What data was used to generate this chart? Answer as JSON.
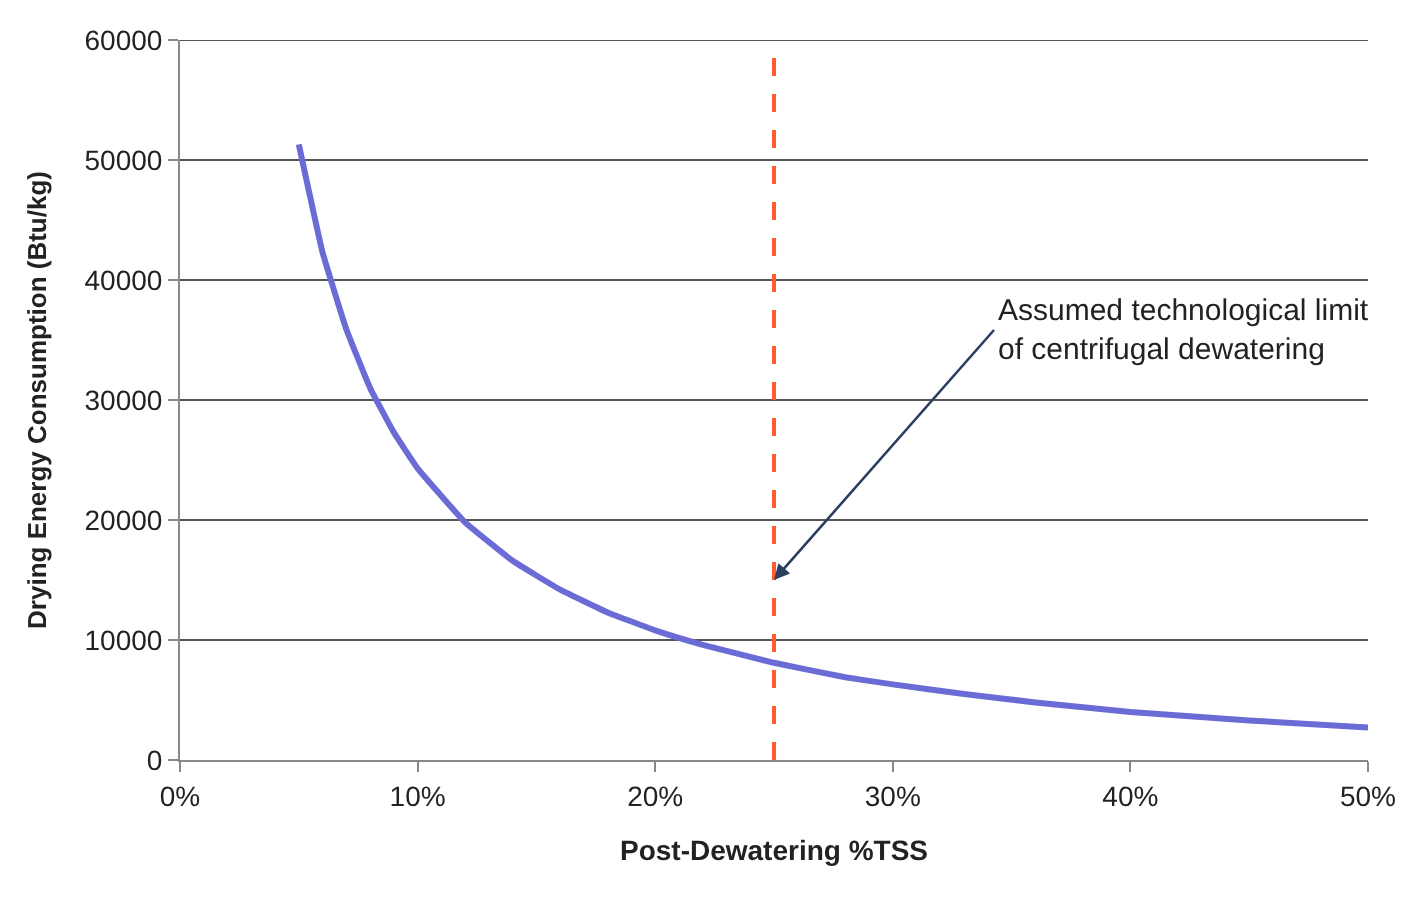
{
  "chart_data": {
    "type": "line",
    "xlabel": "Post-Dewatering %TSS",
    "ylabel": "Drying Energy Consumption (Btu/kg)",
    "x": [
      5,
      6,
      7,
      8,
      9,
      10,
      12,
      14,
      16,
      18,
      20,
      22,
      25,
      28,
      30,
      33,
      36,
      40,
      45,
      50
    ],
    "series": [
      {
        "color": "#6b6bd6",
        "values": [
          51300,
          42300,
          35900,
          31000,
          27300,
          24300,
          19800,
          16600,
          14200,
          12300,
          10800,
          9600,
          8100,
          6900,
          6300,
          5500,
          4800,
          4000,
          3300,
          2700
        ]
      }
    ],
    "xlim": [
      0,
      50
    ],
    "xticks": [
      {
        "value": 0,
        "label": "0%"
      },
      {
        "value": 10,
        "label": "10%"
      },
      {
        "value": 20,
        "label": "20%"
      },
      {
        "value": 30,
        "label": "30%"
      },
      {
        "value": 40,
        "label": "40%"
      },
      {
        "value": 50,
        "label": "50%"
      }
    ],
    "ylim": [
      0,
      60000
    ],
    "yticks": [
      0,
      10000,
      20000,
      30000,
      40000,
      50000,
      60000
    ],
    "grid": "y",
    "line_style": "solid",
    "ref_lines": [
      {
        "axis": "x",
        "value": 25,
        "color": "#ff5a30",
        "line_style": "dashed"
      }
    ],
    "annotations": [
      {
        "text": "Assumed technological limit\nof centrifugal dewatering",
        "x": 25,
        "y": 15000
      }
    ]
  }
}
